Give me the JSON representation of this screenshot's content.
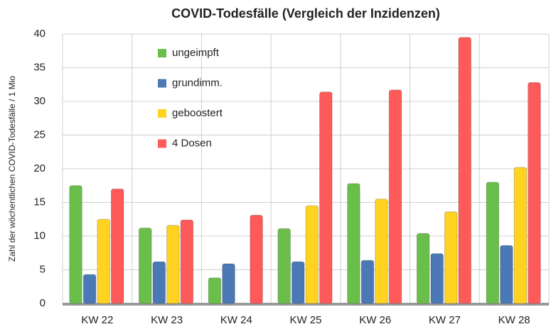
{
  "chart_data": {
    "type": "bar",
    "title": "COVID-Todesfälle (Vergleich der Inzidenzen)",
    "y_label": "Zahl der wöchentlichen COVID-Todesfälle / 1 Mio",
    "categories": [
      "KW 22",
      "KW 23",
      "KW 24",
      "KW 25",
      "KW 26",
      "KW 27",
      "KW 28"
    ],
    "series": [
      {
        "name": "ungeimpft",
        "color": "#6abf4b",
        "values": [
          17.5,
          11.2,
          3.8,
          11.1,
          17.8,
          10.4,
          18
        ]
      },
      {
        "name": "grundimm.",
        "color": "#4b79b6",
        "values": [
          4.3,
          6.2,
          5.9,
          6.2,
          6.4,
          7.4,
          8.6
        ]
      },
      {
        "name": "geboostert",
        "color": "#ffd320",
        "values": [
          12.5,
          11.6,
          0,
          14.5,
          15.5,
          13.6,
          20.2
        ]
      },
      {
        "name": "4 Dosen",
        "color": "#ff5a5a",
        "values": [
          17,
          12.4,
          13.1,
          31.4,
          31.7,
          39.5,
          32.8
        ]
      }
    ],
    "ylim": [
      0,
      40
    ],
    "yticks": [
      0,
      5,
      10,
      15,
      20,
      25,
      30,
      35,
      40
    ],
    "grid": true,
    "legend": "upper left"
  }
}
